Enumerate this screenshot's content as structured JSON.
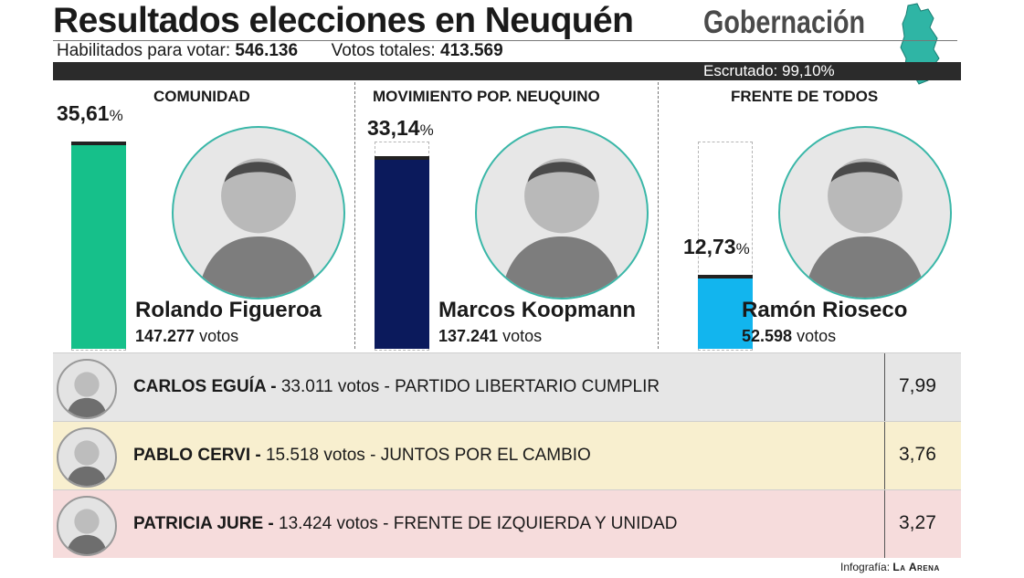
{
  "header": {
    "title": "Resultados elecciones en Neuquén",
    "subtitle": "Gobernación",
    "registered_label": "Habilitados para votar:",
    "registered_value": "546.136",
    "total_label": "Votos totales:",
    "total_value": "413.569",
    "scrutiny_label": "Escrutado:",
    "scrutiny_value": "99,10%"
  },
  "chart_data": {
    "type": "bar",
    "categories": [
      "COMUNIDAD",
      "MOVIMIENTO POP. NEUQUINO",
      "FRENTE DE TODOS"
    ],
    "values": [
      35.61,
      33.14,
      12.73
    ],
    "value_labels": [
      "35,61",
      "33,14",
      "12,73"
    ],
    "unit": "%",
    "candidates": [
      "Rolando Figueroa",
      "Marcos Koopmann",
      "Ramón Rioseco"
    ],
    "votes": [
      "147.277",
      "137.241",
      "52.598"
    ],
    "votes_unit": "votos",
    "colors": [
      "#16c08a",
      "#0b1a5c",
      "#12b5ee"
    ],
    "ylim": [
      0,
      35.61
    ]
  },
  "others": {
    "percent_header": "%",
    "rows": [
      {
        "name": "CARLOS EGUÍA -",
        "votes": "33.011 votos -",
        "party": "PARTIDO LIBERTARIO CUMPLIR",
        "pct": "7,99",
        "bg": "#e6e6e6"
      },
      {
        "name": "PABLO CERVI -",
        "votes": "15.518 votos -",
        "party": "JUNTOS POR EL CAMBIO",
        "pct": "3,76",
        "bg": "#f8efcf"
      },
      {
        "name": "PATRICIA JURE -",
        "votes": "13.424 votos -",
        "party": "FRENTE DE IZQUIERDA Y UNIDAD",
        "pct": "3,27",
        "bg": "#f6dcdc"
      }
    ]
  },
  "credit": {
    "label": "Infografía:",
    "source": "La Arena"
  }
}
